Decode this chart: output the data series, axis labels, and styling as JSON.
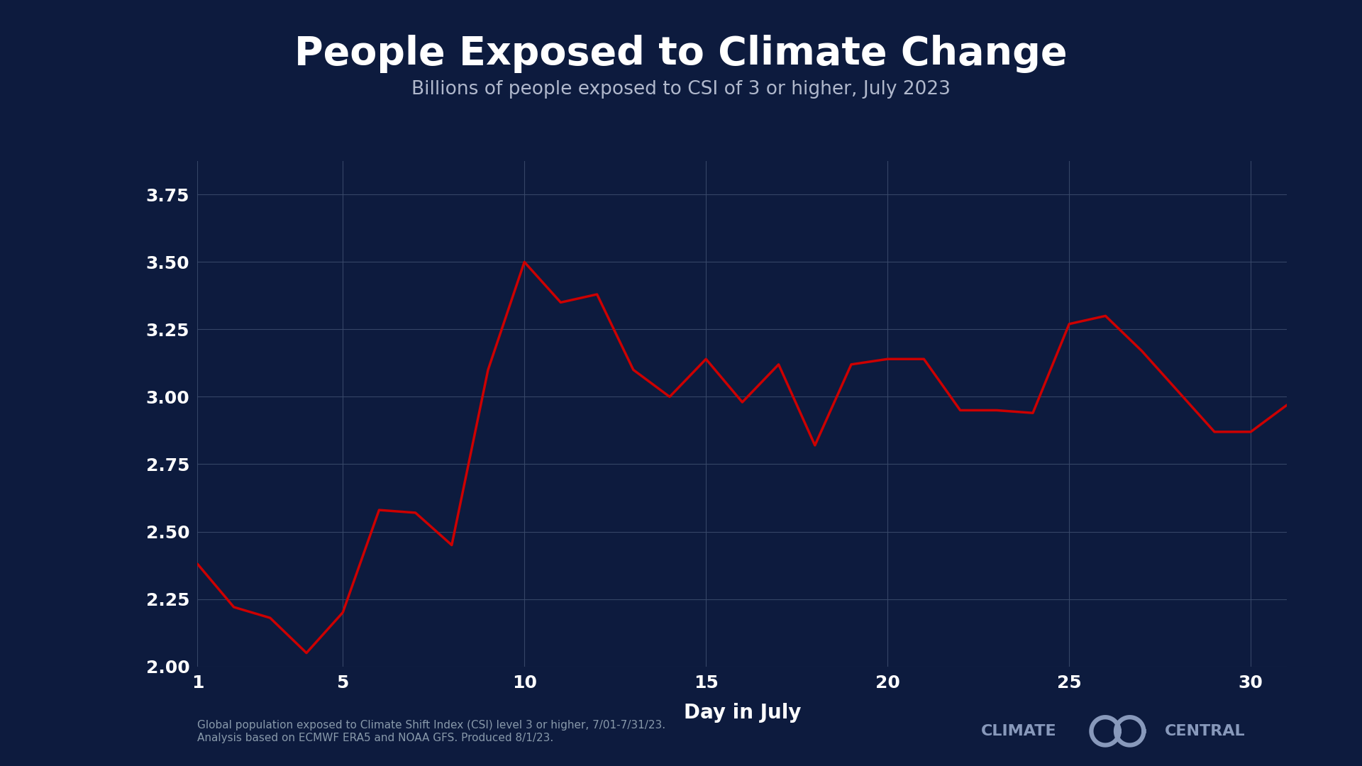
{
  "title": "People Exposed to Climate Change",
  "subtitle": "Billions of people exposed to CSI of 3 or higher, July 2023",
  "xlabel": "Day in July",
  "background_color": "#0d1b3e",
  "plot_bg_color": "#0d1b3e",
  "grid_color": "#3a4a6b",
  "line_color": "#cc0000",
  "title_color": "#ffffff",
  "subtitle_color": "#b0b8cc",
  "axis_label_color": "#ffffff",
  "tick_color": "#ffffff",
  "footnote_color": "#8899aa",
  "logo_color": "#8899bb",
  "footnote": "Global population exposed to Climate Shift Index (CSI) level 3 or higher, 7/01-7/31/23.\nAnalysis based on ECMWF ERA5 and NOAA GFS. Produced 8/1/23.",
  "days": [
    1,
    2,
    3,
    4,
    5,
    6,
    7,
    8,
    9,
    10,
    11,
    12,
    13,
    14,
    15,
    16,
    17,
    18,
    19,
    20,
    21,
    22,
    23,
    24,
    25,
    26,
    27,
    28,
    29,
    30,
    31
  ],
  "values": [
    2.38,
    2.22,
    2.18,
    2.05,
    2.2,
    2.58,
    2.57,
    2.45,
    3.1,
    3.5,
    3.35,
    3.38,
    3.1,
    3.0,
    3.14,
    2.98,
    3.12,
    2.82,
    3.12,
    3.14,
    3.14,
    2.95,
    2.95,
    2.94,
    3.27,
    3.3,
    3.17,
    3.02,
    2.87,
    2.87,
    2.97
  ],
  "ylim": [
    2.0,
    3.875
  ],
  "yticks": [
    2.0,
    2.25,
    2.5,
    2.75,
    3.0,
    3.25,
    3.5,
    3.75
  ],
  "xticks": [
    1,
    5,
    10,
    15,
    20,
    25,
    30
  ],
  "title_fontsize": 40,
  "subtitle_fontsize": 19,
  "axis_label_fontsize": 20,
  "tick_fontsize": 18,
  "footnote_fontsize": 11
}
